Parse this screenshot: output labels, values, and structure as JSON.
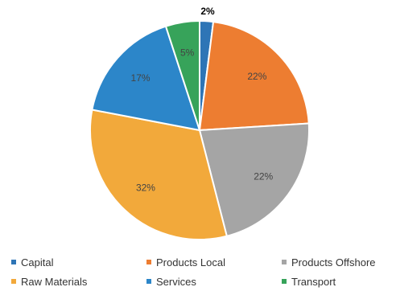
{
  "chart_data": {
    "type": "pie",
    "slices": [
      {
        "name": "Capital",
        "value": 2,
        "label": "2%",
        "color": "#2e75b6"
      },
      {
        "name": "Products Local",
        "value": 22,
        "label": "22%",
        "color": "#ed7d31"
      },
      {
        "name": "Products Offshore",
        "value": 22,
        "label": "22%",
        "color": "#a5a5a5"
      },
      {
        "name": "Raw Materials",
        "value": 32,
        "label": "32%",
        "color": "#f2a93b"
      },
      {
        "name": "Services",
        "value": 17,
        "label": "17%",
        "color": "#2c86c9"
      },
      {
        "name": "Transport",
        "value": 5,
        "label": "5%",
        "color": "#37a35a"
      }
    ],
    "legend_position": "bottom"
  }
}
